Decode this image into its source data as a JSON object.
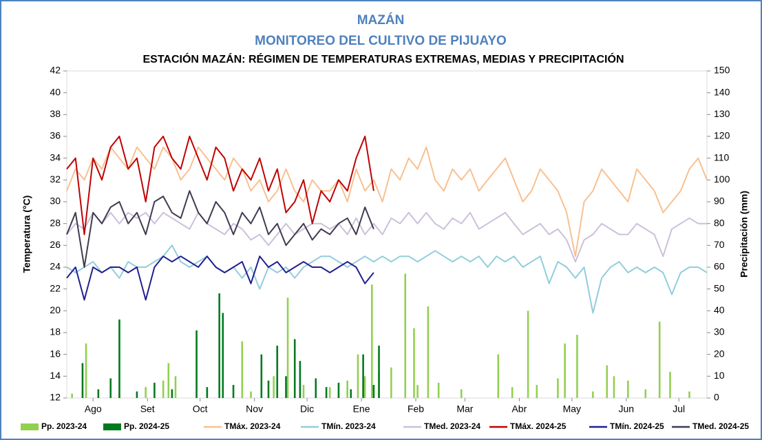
{
  "chart_data": {
    "type": "line",
    "title": "MAZÁN",
    "subtitle": "MONITOREO DEL CULTIVO DE PIJUAYO",
    "plot_title": "ESTACIÓN MAZÁN: RÉGIMEN DE TEMPERATURAS EXTREMAS, MEDIAS Y PRECIPITACIÓN",
    "y_label": "Temperatura (°C)",
    "y2_label": "Precipitación (mm)",
    "xlim": [
      0,
      365
    ],
    "xticks": [
      {
        "value": 15,
        "label": "Ago"
      },
      {
        "value": 46,
        "label": "Set"
      },
      {
        "value": 76,
        "label": "Oct"
      },
      {
        "value": 107,
        "label": "Nov"
      },
      {
        "value": 137,
        "label": "Dic"
      },
      {
        "value": 168,
        "label": "Ene"
      },
      {
        "value": 199,
        "label": "Feb"
      },
      {
        "value": 227,
        "label": "Mar"
      },
      {
        "value": 258,
        "label": "Abr"
      },
      {
        "value": 288,
        "label": "May"
      },
      {
        "value": 319,
        "label": "Jun"
      },
      {
        "value": 349,
        "label": "Jul"
      }
    ],
    "ylim": [
      12,
      42
    ],
    "yticks": [
      12,
      14,
      16,
      18,
      20,
      22,
      24,
      26,
      28,
      30,
      32,
      34,
      36,
      38,
      40,
      42
    ],
    "y2lim": [
      0,
      150
    ],
    "y2ticks": [
      0,
      10,
      20,
      30,
      40,
      50,
      60,
      70,
      80,
      90,
      100,
      110,
      120,
      130,
      140,
      150
    ],
    "x": [
      0,
      5,
      10,
      15,
      20,
      25,
      30,
      35,
      40,
      45,
      50,
      55,
      60,
      65,
      70,
      75,
      80,
      85,
      90,
      95,
      100,
      105,
      110,
      115,
      120,
      125,
      130,
      135,
      140,
      145,
      150,
      155,
      160,
      165,
      170,
      175,
      180,
      185,
      190,
      195,
      200,
      205,
      210,
      215,
      220,
      225,
      230,
      235,
      240,
      245,
      250,
      255,
      260,
      265,
      270,
      275,
      280,
      285,
      290,
      295,
      300,
      305,
      310,
      315,
      320,
      325,
      330,
      335,
      340,
      345,
      350,
      355,
      360,
      365
    ],
    "series": [
      {
        "name": "Pp. 2023-24",
        "type": "bar",
        "axis": "y2",
        "color": "#92d050",
        "x": [
          3,
          11,
          30,
          45,
          55,
          58,
          62,
          80,
          100,
          105,
          118,
          126,
          135,
          150,
          160,
          166,
          170,
          174,
          178,
          185,
          193,
          198,
          200,
          206,
          212,
          225,
          246,
          254,
          263,
          268,
          280,
          284,
          291,
          300,
          308,
          312,
          320,
          330,
          338,
          344,
          355
        ],
        "values": [
          2,
          25,
          2,
          5,
          8,
          16,
          10,
          4,
          26,
          3,
          10,
          46,
          6,
          5,
          8,
          20,
          10,
          52,
          12,
          14,
          57,
          32,
          6,
          42,
          7,
          4,
          20,
          5,
          40,
          6,
          9,
          25,
          29,
          3,
          15,
          10,
          8,
          4,
          35,
          12,
          3
        ]
      },
      {
        "name": "Pp. 2024-25",
        "type": "bar",
        "axis": "y2",
        "color": "#007a1e",
        "x": [
          9,
          18,
          25,
          30,
          40,
          50,
          60,
          74,
          80,
          87,
          89,
          95,
          111,
          115,
          120,
          125,
          130,
          133,
          142,
          148,
          155,
          162,
          169,
          175,
          178
        ],
        "values": [
          16,
          4,
          9,
          36,
          3,
          7,
          4,
          31,
          5,
          48,
          39,
          6,
          20,
          8,
          24,
          10,
          27,
          17,
          9,
          5,
          7,
          4,
          20,
          6,
          24
        ]
      },
      {
        "name": "TMáx. 2023-24",
        "color": "#f8c090",
        "values": [
          31,
          33,
          32,
          34,
          33,
          35,
          34,
          33,
          35,
          34,
          33,
          35,
          34,
          32,
          33,
          35,
          34,
          33,
          32,
          34,
          33,
          31,
          32,
          30,
          31,
          33,
          31,
          30,
          32,
          31,
          31,
          32,
          30,
          33,
          31,
          32,
          30,
          33,
          32,
          34,
          33,
          35,
          32,
          31,
          33,
          32,
          33,
          31,
          32,
          33,
          34,
          32,
          30,
          31,
          33,
          32,
          31,
          29,
          25,
          30,
          31,
          33,
          32,
          31,
          30,
          33,
          32,
          31,
          29,
          30,
          31,
          33,
          34,
          32
        ]
      },
      {
        "name": "TMín. 2023-24",
        "color": "#92cddc",
        "values": [
          24,
          23.5,
          24,
          24.5,
          23.5,
          24,
          23,
          24.5,
          24,
          24,
          24.5,
          25,
          26,
          24.5,
          24,
          24.5,
          25,
          24,
          23.5,
          24,
          23,
          24,
          22,
          24,
          23.5,
          24,
          23,
          24,
          24.5,
          25,
          25,
          24.5,
          24,
          24.5,
          25,
          24.5,
          25,
          24.5,
          25,
          25,
          24.5,
          25,
          25.5,
          25,
          24.5,
          25,
          24.5,
          25,
          24,
          25,
          24.5,
          25,
          24,
          24.5,
          25,
          22.5,
          24.5,
          24,
          23,
          24,
          19.8,
          23,
          24,
          24.5,
          23.5,
          24,
          23.5,
          24,
          23.5,
          21.5,
          23.5,
          24,
          24,
          23.5
        ]
      },
      {
        "name": "TMed. 2023-24",
        "color": "#ccc0da",
        "values": [
          27,
          28,
          27.5,
          29,
          28,
          29,
          28,
          29,
          28.5,
          29,
          28,
          29,
          28.5,
          28,
          27.5,
          29,
          28,
          27.5,
          27,
          28,
          27.5,
          26.5,
          27,
          26,
          27,
          28,
          27,
          27.5,
          28,
          28,
          27.5,
          28,
          27,
          28.5,
          27,
          28,
          27,
          28.5,
          28,
          29,
          28,
          29,
          28,
          27.5,
          28.5,
          28,
          29,
          27.5,
          28,
          28.5,
          29,
          28,
          27,
          27.5,
          28,
          27,
          27.5,
          26.5,
          24.5,
          26.5,
          27,
          28,
          27.5,
          27,
          27,
          28,
          27.5,
          27,
          25,
          27.5,
          28,
          28.5,
          28,
          28
        ]
      },
      {
        "name": "TMáx. 2024-25",
        "color": "#c00000",
        "values": [
          33,
          34,
          27,
          34,
          32,
          35,
          36,
          33,
          34,
          30,
          35,
          36,
          34,
          33,
          36,
          34,
          32,
          35,
          34,
          31,
          33,
          32,
          34,
          31,
          33,
          29,
          30,
          32,
          28,
          31,
          30,
          32,
          31,
          34,
          36,
          31,
          null,
          null,
          null,
          null,
          null,
          null,
          null,
          null,
          null,
          null,
          null,
          null,
          null,
          null,
          null,
          null,
          null,
          null,
          null,
          null,
          null,
          null,
          null,
          null,
          null,
          null,
          null,
          null,
          null,
          null,
          null,
          null,
          null,
          null,
          null,
          null,
          null,
          null
        ]
      },
      {
        "name": "TMín. 2024-25",
        "color": "#1f1f8f",
        "values": [
          23,
          24,
          21,
          24,
          23.5,
          24,
          24,
          23.5,
          24,
          21,
          24,
          25,
          24.5,
          25,
          24.5,
          24,
          25,
          24,
          23.5,
          24,
          24.5,
          22.5,
          25,
          24,
          24.5,
          23.5,
          24,
          24.5,
          24,
          24,
          23.5,
          24,
          24.5,
          24,
          22.5,
          23.5,
          null,
          null,
          null,
          null,
          null,
          null,
          null,
          null,
          null,
          null,
          null,
          null,
          null,
          null,
          null,
          null,
          null,
          null,
          null,
          null,
          null,
          null,
          null,
          null,
          null,
          null,
          null,
          null,
          null,
          null,
          null,
          null,
          null,
          null,
          null,
          null,
          null,
          null
        ]
      },
      {
        "name": "TMed. 2024-25",
        "color": "#403a4f",
        "values": [
          27,
          29,
          24,
          29,
          28,
          29.5,
          30,
          28,
          29,
          27,
          30,
          30.5,
          29,
          28.5,
          31,
          29,
          28,
          30,
          29,
          27,
          29,
          28,
          29.5,
          27,
          28,
          26,
          27,
          28,
          26.5,
          27.5,
          27,
          28,
          28.5,
          27,
          29.5,
          27.5,
          null,
          null,
          null,
          null,
          null,
          null,
          null,
          null,
          null,
          null,
          null,
          null,
          null,
          null,
          null,
          null,
          null,
          null,
          null,
          null,
          null,
          null,
          null,
          null,
          null,
          null,
          null,
          null,
          null,
          null,
          null,
          null,
          null,
          null,
          null,
          null,
          null,
          null
        ]
      }
    ]
  }
}
